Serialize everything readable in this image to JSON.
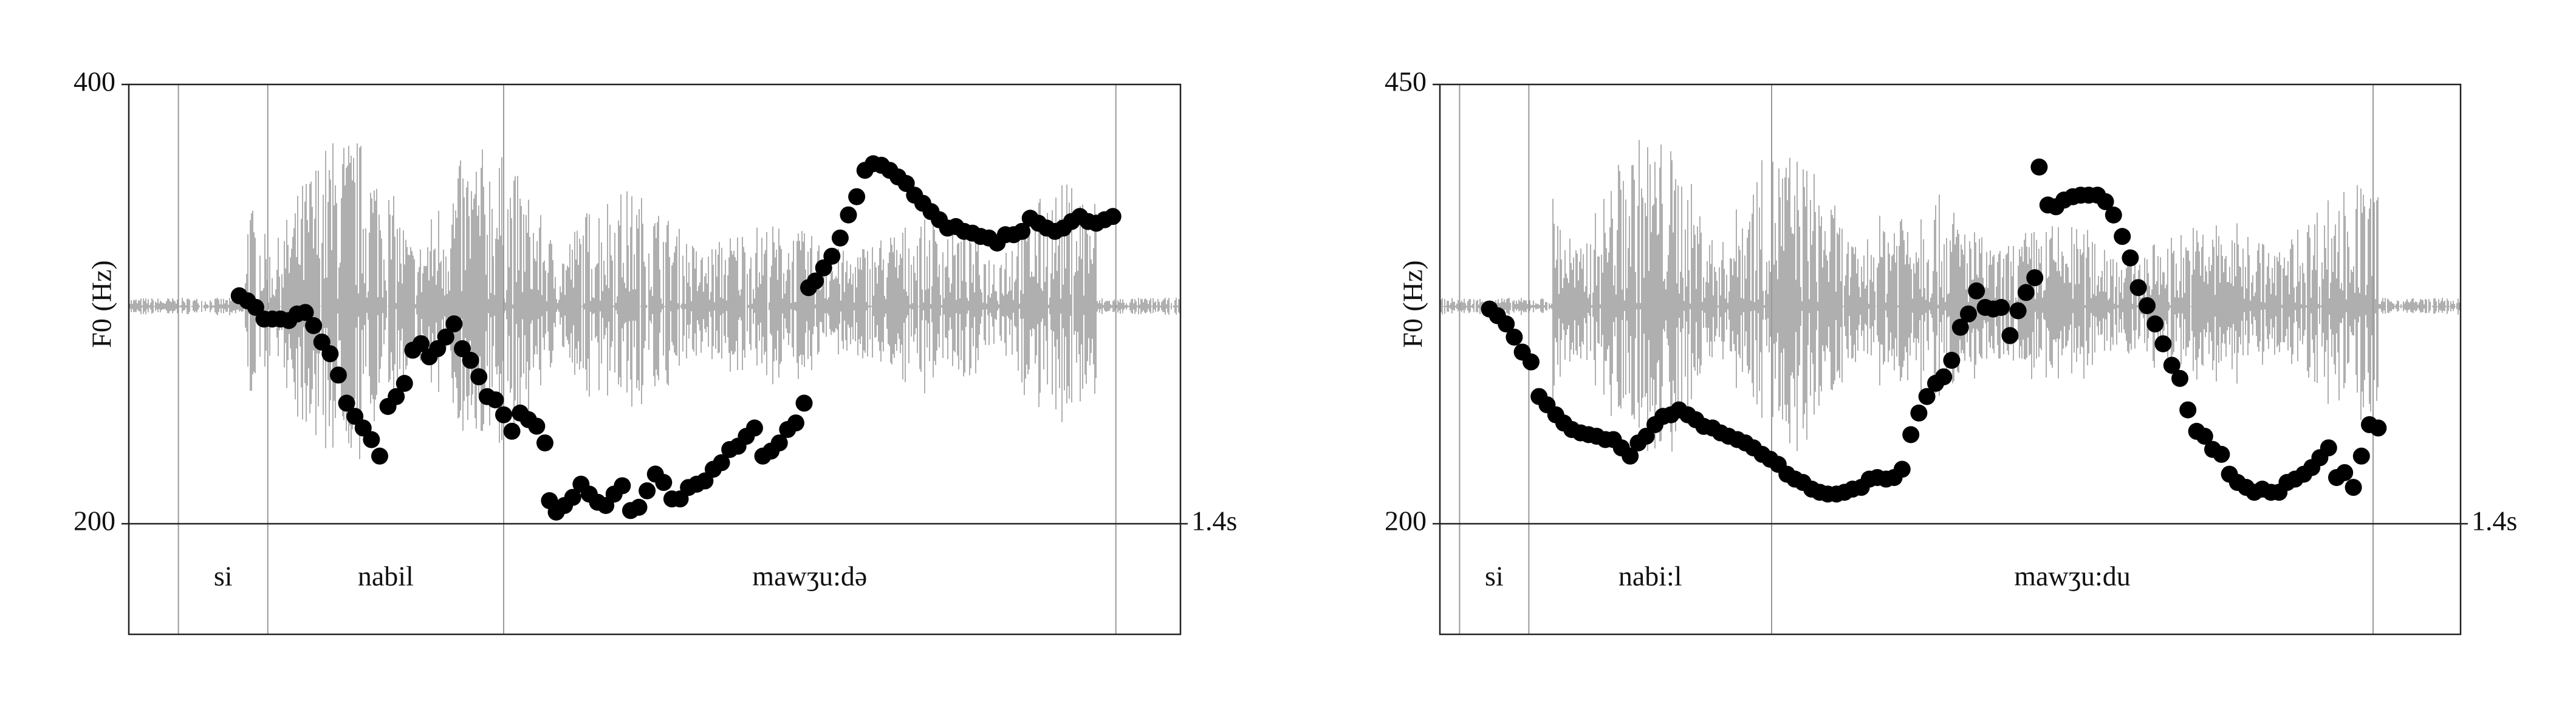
{
  "chart_data": [
    {
      "type": "scatter",
      "y_label": "F0 (Hz)",
      "color": "#000000",
      "xlim": [
        0,
        1.4
      ],
      "xticks": [
        {
          "value": 1.4,
          "label": "1.4s"
        }
      ],
      "ylim": [
        200,
        400
      ],
      "yticks": [
        200,
        400
      ],
      "x": [
        0.147,
        0.158,
        0.169,
        0.18,
        0.191,
        0.202,
        0.213,
        0.224,
        0.235,
        0.246,
        0.257,
        0.268,
        0.279,
        0.29,
        0.301,
        0.312,
        0.323,
        0.334,
        0.345,
        0.356,
        0.367,
        0.378,
        0.389,
        0.4,
        0.411,
        0.422,
        0.433,
        0.444,
        0.455,
        0.466,
        0.477,
        0.488,
        0.499,
        0.51,
        0.521,
        0.532,
        0.543,
        0.554,
        0.56,
        0.569,
        0.58,
        0.591,
        0.602,
        0.613,
        0.624,
        0.635,
        0.646,
        0.657,
        0.668,
        0.679,
        0.69,
        0.701,
        0.712,
        0.723,
        0.734,
        0.745,
        0.756,
        0.767,
        0.778,
        0.789,
        0.8,
        0.811,
        0.822,
        0.833,
        0.844,
        0.855,
        0.866,
        0.877,
        0.888,
        0.899,
        0.905,
        0.914,
        0.925,
        0.936,
        0.947,
        0.958,
        0.969,
        0.98,
        0.991,
        1.002,
        1.013,
        1.024,
        1.035,
        1.046,
        1.057,
        1.068,
        1.079,
        1.09,
        1.101,
        1.112,
        1.123,
        1.134,
        1.145,
        1.156,
        1.167,
        1.178,
        1.189,
        1.2,
        1.211,
        1.222,
        1.233,
        1.244,
        1.255,
        1.266,
        1.277,
        1.288,
        1.299,
        1.31
      ],
      "y": [
        303.8,
        301.5,
        298.5,
        293.2,
        293.2,
        293.2,
        292.5,
        295.5,
        296.2,
        290.2,
        282.7,
        277.4,
        267.7,
        254.9,
        248.9,
        243.6,
        238.3,
        230.8,
        253.4,
        257.9,
        263.9,
        279,
        282,
        276,
        279.7,
        285,
        291,
        279.7,
        274.4,
        266.9,
        257.9,
        256.4,
        249.6,
        242.1,
        250.4,
        247.4,
        244.4,
        236.8,
        210.5,
        205.3,
        208.3,
        212,
        218,
        213.5,
        209.8,
        208.3,
        213.5,
        217.3,
        206,
        207.5,
        215,
        222.6,
        218.8,
        211.3,
        211.3,
        216.5,
        218,
        219.5,
        224.8,
        227.8,
        233.8,
        235.3,
        239.8,
        243.6,
        230.8,
        233.1,
        236.8,
        242.9,
        245.9,
        254.9,
        307.5,
        310.5,
        316.5,
        321.8,
        330.1,
        340.6,
        348.9,
        360.9,
        363.9,
        363.2,
        360.9,
        357.9,
        354.9,
        349.6,
        345.9,
        342.1,
        338.4,
        334.6,
        335.3,
        333.1,
        332.3,
        330.8,
        330.1,
        327.8,
        331.6,
        331.6,
        333.1,
        339.1,
        336.8,
        334.6,
        333.1,
        334.6,
        337.6,
        339.9,
        337.6,
        336.8,
        338.4,
        339.9
      ],
      "tier": {
        "boundaries": [
          0.066,
          0.185,
          0.499,
          1.314
        ],
        "labels": [
          "si",
          "nabil",
          "mawʒu:də"
        ]
      }
    },
    {
      "type": "scatter",
      "y_label": "F0 (Hz)",
      "color": "#000000",
      "xlim": [
        0,
        1.4
      ],
      "xticks": [
        {
          "value": 1.4,
          "label": "1.4s"
        }
      ],
      "ylim": [
        200,
        450
      ],
      "yticks": [
        200,
        450
      ],
      "x": [
        0.068,
        0.079,
        0.091,
        0.102,
        0.113,
        0.125,
        0.136,
        0.147,
        0.159,
        0.17,
        0.181,
        0.193,
        0.204,
        0.215,
        0.227,
        0.238,
        0.249,
        0.261,
        0.272,
        0.283,
        0.295,
        0.306,
        0.317,
        0.328,
        0.34,
        0.351,
        0.362,
        0.374,
        0.385,
        0.396,
        0.408,
        0.419,
        0.43,
        0.442,
        0.453,
        0.464,
        0.476,
        0.487,
        0.498,
        0.51,
        0.521,
        0.532,
        0.544,
        0.555,
        0.566,
        0.578,
        0.589,
        0.6,
        0.612,
        0.623,
        0.634,
        0.646,
        0.657,
        0.668,
        0.68,
        0.691,
        0.702,
        0.714,
        0.725,
        0.736,
        0.748,
        0.759,
        0.77,
        0.782,
        0.793,
        0.804,
        0.816,
        0.822,
        0.834,
        0.845,
        0.856,
        0.868,
        0.879,
        0.89,
        0.902,
        0.913,
        0.924,
        0.936,
        0.947,
        0.958,
        0.97,
        0.981,
        0.992,
        1.004,
        1.015,
        1.026,
        1.038,
        1.049,
        1.06,
        1.072,
        1.083,
        1.094,
        1.106,
        1.117,
        1.128,
        1.14,
        1.151,
        1.162,
        1.173,
        1.185,
        1.196,
        1.207,
        1.219,
        1.23,
        1.241,
        1.253,
        1.264,
        1.275,
        1.287
      ],
      "y": [
        322.2,
        318.4,
        313.7,
        306.2,
        297.7,
        292.1,
        272.4,
        267.7,
        262,
        257.3,
        253.6,
        251.7,
        250.7,
        249.8,
        247.9,
        247.9,
        243.2,
        238.5,
        246,
        249.8,
        256.4,
        261.1,
        262,
        264.8,
        262,
        259.2,
        255.4,
        254.5,
        251.7,
        249.8,
        247.9,
        246,
        243.2,
        239.5,
        236.7,
        233.8,
        228.2,
        225.4,
        223.5,
        219.7,
        217.9,
        216.9,
        216.9,
        217.9,
        219.7,
        220.7,
        225.4,
        226.3,
        225.4,
        226.3,
        231,
        250.7,
        263,
        272.4,
        279.9,
        283.6,
        293,
        311.8,
        319.4,
        332.5,
        323.1,
        322.2,
        323.1,
        307.1,
        321.2,
        331.6,
        340,
        403,
        381.4,
        380.4,
        384.2,
        386.1,
        387,
        387,
        387,
        383.3,
        375.7,
        363.5,
        351.3,
        334.4,
        324.1,
        313.7,
        302.4,
        290.2,
        282.7,
        264.8,
        252.6,
        249.8,
        242.3,
        239.5,
        228.2,
        223.5,
        220.7,
        217.9,
        219.7,
        217.9,
        217.9,
        223.5,
        225.4,
        228.2,
        232,
        237.6,
        243.2,
        226.3,
        229.1,
        220.7,
        238.5,
        256.4,
        254.5
      ],
      "tier": {
        "boundaries": [
          0.027,
          0.122,
          0.455,
          1.28
        ],
        "labels": [
          "si",
          "nabi:l",
          "mawʒu:du"
        ]
      }
    }
  ]
}
